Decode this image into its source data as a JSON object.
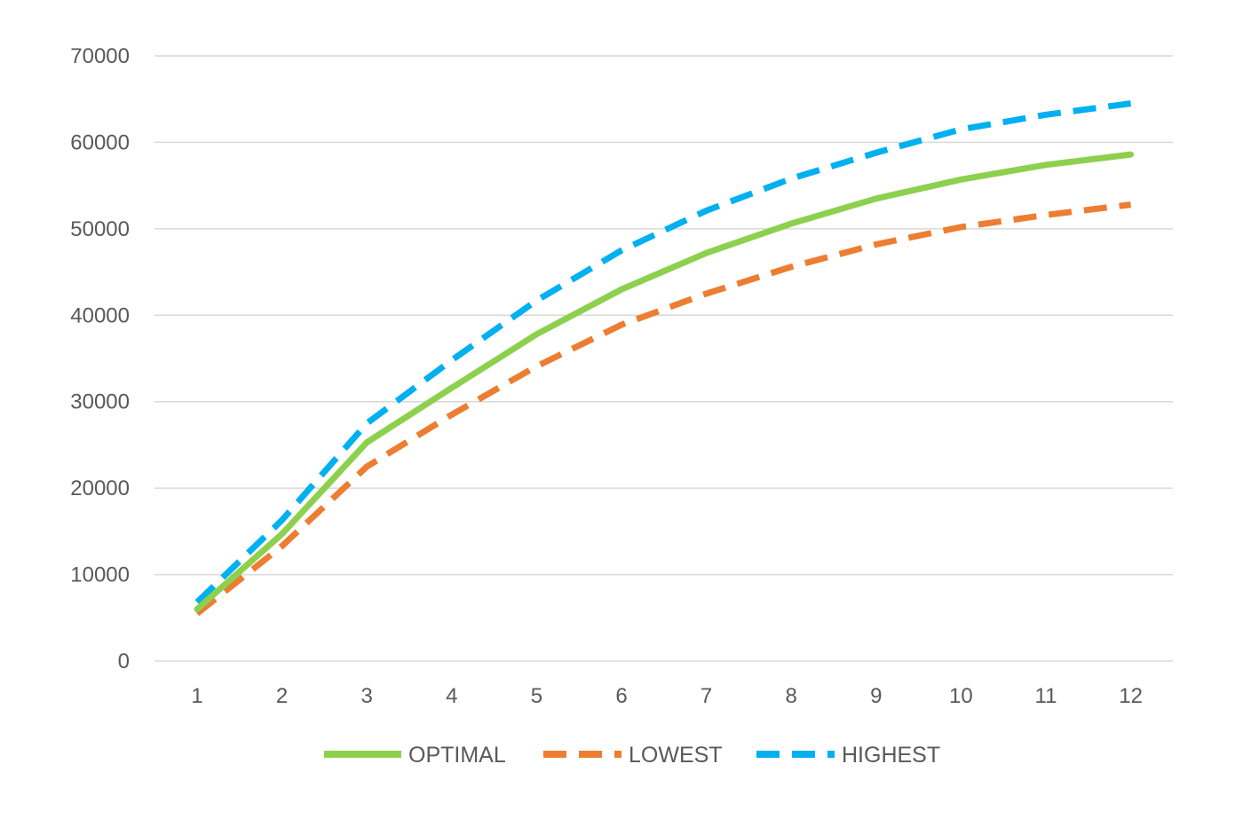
{
  "chart_data": {
    "type": "line",
    "title": "",
    "xlabel": "",
    "ylabel": "",
    "categories": [
      "1",
      "2",
      "3",
      "4",
      "5",
      "6",
      "7",
      "8",
      "9",
      "10",
      "11",
      "12"
    ],
    "ylim": [
      0,
      70000
    ],
    "yticks": [
      0,
      10000,
      20000,
      30000,
      40000,
      50000,
      60000,
      70000
    ],
    "ytick_labels": [
      "0",
      "10000",
      "20000",
      "30000",
      "40000",
      "50000",
      "60000",
      "70000"
    ],
    "grid": "horizontal",
    "legend_position": "bottom",
    "series": [
      {
        "name": "OPTIMAL",
        "color": "#8DD04E",
        "style": "solid",
        "values": [
          6000,
          14700,
          25300,
          31600,
          37800,
          43000,
          47200,
          50600,
          53500,
          55700,
          57400,
          58600
        ]
      },
      {
        "name": "LOWEST",
        "color": "#ED7D31",
        "style": "dashed",
        "values": [
          5500,
          13300,
          22500,
          28500,
          34100,
          38900,
          42500,
          45600,
          48200,
          50200,
          51600,
          52800
        ]
      },
      {
        "name": "HIGHEST",
        "color": "#00B0F0",
        "style": "dashed",
        "values": [
          6800,
          16300,
          27500,
          34800,
          41700,
          47500,
          52100,
          55800,
          58800,
          61500,
          63200,
          64500
        ]
      }
    ]
  }
}
